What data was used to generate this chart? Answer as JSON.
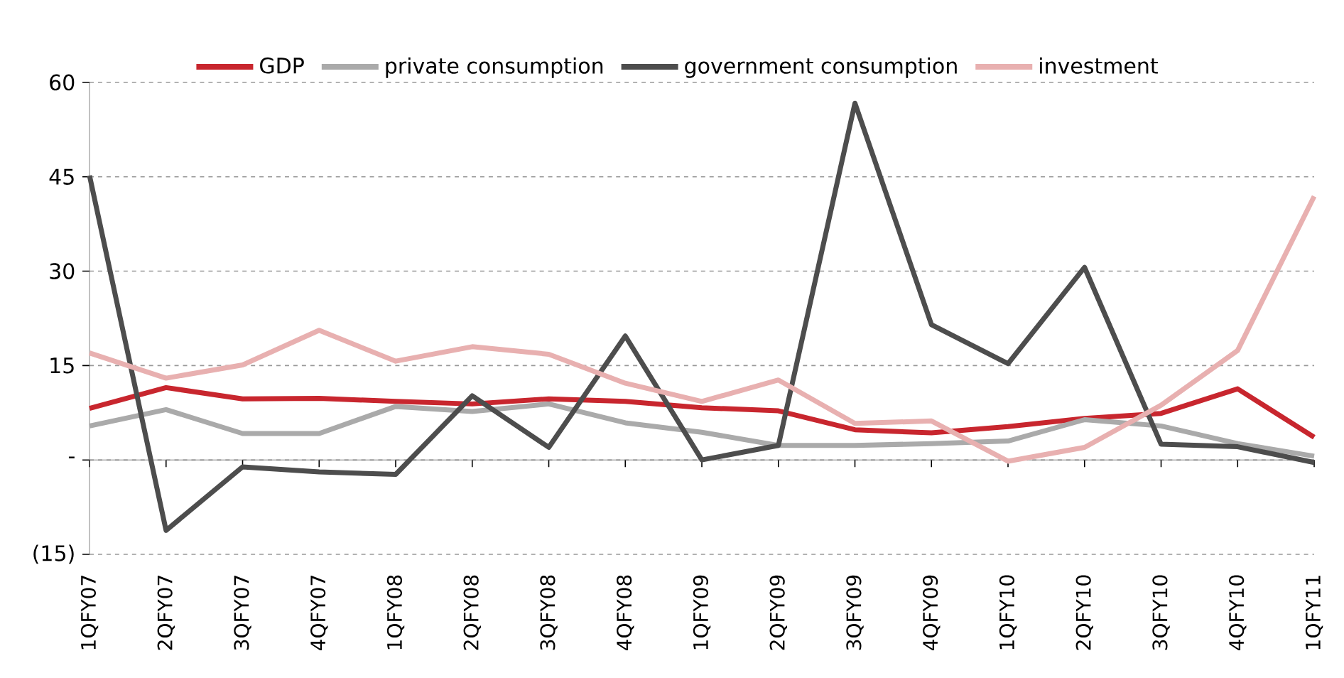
{
  "chart_data": {
    "type": "line",
    "categories": [
      "1QFY07",
      "2QFY07",
      "3QFY07",
      "4QFY07",
      "1QFY08",
      "2QFY08",
      "3QFY08",
      "4QFY08",
      "1QFY09",
      "2QFY09",
      "3QFY09",
      "4QFY09",
      "1QFY10",
      "2QFY10",
      "3QFY10",
      "4QFY10",
      "1QFY11"
    ],
    "series": [
      {
        "name": "GDP",
        "color": "#c8262e",
        "values": [
          8.2,
          11.5,
          9.7,
          9.8,
          9.3,
          8.9,
          9.7,
          9.3,
          8.3,
          7.8,
          4.8,
          4.3,
          5.3,
          6.6,
          7.4,
          11.3,
          3.6
        ]
      },
      {
        "name": "private consumption",
        "color": "#aaaaaa",
        "values": [
          5.4,
          8.0,
          4.2,
          4.2,
          8.5,
          7.7,
          8.9,
          5.9,
          4.4,
          2.3,
          2.3,
          2.6,
          3.0,
          6.4,
          5.4,
          2.6,
          0.6
        ]
      },
      {
        "name": "government consumption",
        "color": "#4d4d4d",
        "values": [
          45.2,
          -11.2,
          -1.1,
          -1.9,
          -2.3,
          10.2,
          2.0,
          19.7,
          0,
          2.3,
          56.7,
          21.5,
          15.3,
          30.6,
          2.5,
          2.1,
          -0.4
        ]
      },
      {
        "name": "investment",
        "color": "#e8b0b0",
        "values": [
          17.0,
          13.0,
          15.1,
          20.6,
          15.7,
          18.0,
          16.8,
          12.2,
          9.3,
          12.7,
          5.8,
          6.2,
          -0.2,
          2.0,
          8.7,
          17.4,
          41.9
        ]
      }
    ],
    "ylim": [
      -15,
      60
    ],
    "yticks": [
      {
        "value": -15,
        "label": "(15)"
      },
      {
        "value": 0,
        "label": "-"
      },
      15,
      30,
      45,
      60
    ],
    "grid": "y",
    "legend": "top",
    "marker": "none",
    "line_style": "solid"
  }
}
